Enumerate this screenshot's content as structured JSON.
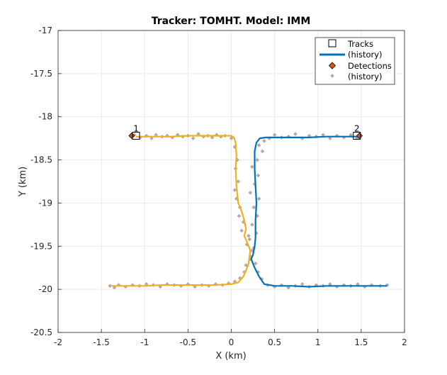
{
  "chart_data": {
    "type": "line",
    "title": "Tracker: TOMHT. Model: IMM",
    "xlabel": "X (km)",
    "ylabel": "Y (km)",
    "xlim": [
      -2,
      2
    ],
    "ylim": [
      -20.5,
      -17
    ],
    "xticks": [
      -2,
      -1.5,
      -1,
      -0.5,
      0,
      0.5,
      1,
      1.5,
      2
    ],
    "yticks": [
      -20.5,
      -20,
      -19.5,
      -19,
      -18.5,
      -18,
      -17.5,
      -17
    ],
    "grid": true,
    "legend_position": "top-right",
    "legend": [
      {
        "label": "Tracks",
        "marker": "square"
      },
      {
        "label": "(history)",
        "marker": "line"
      },
      {
        "label": "Detections",
        "marker": "diamond"
      },
      {
        "label": "(history)",
        "marker": "point"
      }
    ],
    "colors": {
      "track1": "#EDB120",
      "track2": "#0072BD",
      "detection_fill": "#D95319",
      "history_point_fill": "#C8A0A8",
      "history_point_edge": "#A0A0A0",
      "grid": "#E6E6E6",
      "axis": "#262626"
    },
    "tracks": [
      {
        "id": "1",
        "label_position": [
          -1.1,
          -18.17
        ],
        "current_position": [
          -1.1,
          -18.22
        ],
        "detection_position": [
          -1.15,
          -18.22
        ],
        "history": [
          [
            -1.1,
            -18.23
          ],
          [
            -0.9,
            -18.23
          ],
          [
            -0.7,
            -18.23
          ],
          [
            -0.5,
            -18.22
          ],
          [
            -0.3,
            -18.22
          ],
          [
            -0.1,
            -18.22
          ],
          [
            0.0,
            -18.22
          ],
          [
            0.03,
            -18.24
          ],
          [
            0.05,
            -18.3
          ],
          [
            0.06,
            -18.45
          ],
          [
            0.05,
            -18.6
          ],
          [
            0.06,
            -18.8
          ],
          [
            0.08,
            -19.0
          ],
          [
            0.12,
            -19.1
          ],
          [
            0.15,
            -19.2
          ],
          [
            0.17,
            -19.3
          ],
          [
            0.15,
            -19.38
          ],
          [
            0.18,
            -19.45
          ],
          [
            0.2,
            -19.5
          ],
          [
            0.22,
            -19.55
          ],
          [
            0.21,
            -19.62
          ],
          [
            0.2,
            -19.7
          ],
          [
            0.17,
            -19.78
          ],
          [
            0.14,
            -19.85
          ],
          [
            0.08,
            -19.92
          ],
          [
            0.0,
            -19.94
          ],
          [
            -0.2,
            -19.95
          ],
          [
            -0.4,
            -19.95
          ],
          [
            -0.6,
            -19.95
          ],
          [
            -0.8,
            -19.95
          ],
          [
            -1.0,
            -19.96
          ],
          [
            -1.2,
            -19.96
          ],
          [
            -1.38,
            -19.96
          ]
        ]
      },
      {
        "id": "2",
        "label_position": [
          1.45,
          -18.17
        ],
        "current_position": [
          1.45,
          -18.22
        ],
        "detection_position": [
          1.48,
          -18.22
        ],
        "history": [
          [
            1.48,
            -18.23
          ],
          [
            1.3,
            -18.23
          ],
          [
            1.1,
            -18.23
          ],
          [
            0.9,
            -18.24
          ],
          [
            0.7,
            -18.24
          ],
          [
            0.5,
            -18.24
          ],
          [
            0.4,
            -18.24
          ],
          [
            0.33,
            -18.25
          ],
          [
            0.29,
            -18.3
          ],
          [
            0.27,
            -18.4
          ],
          [
            0.27,
            -18.6
          ],
          [
            0.28,
            -18.8
          ],
          [
            0.29,
            -19.0
          ],
          [
            0.28,
            -19.2
          ],
          [
            0.28,
            -19.4
          ],
          [
            0.27,
            -19.5
          ],
          [
            0.25,
            -19.6
          ],
          [
            0.23,
            -19.65
          ],
          [
            0.27,
            -19.75
          ],
          [
            0.32,
            -19.85
          ],
          [
            0.38,
            -19.94
          ],
          [
            0.5,
            -19.96
          ],
          [
            0.7,
            -19.96
          ],
          [
            0.9,
            -19.97
          ],
          [
            1.1,
            -19.96
          ],
          [
            1.3,
            -19.96
          ],
          [
            1.5,
            -19.96
          ],
          [
            1.65,
            -19.96
          ],
          [
            1.8,
            -19.96
          ]
        ]
      }
    ],
    "detection_history": [
      [
        -1.12,
        -18.21
      ],
      [
        -1.05,
        -18.24
      ],
      [
        -0.98,
        -18.22
      ],
      [
        -0.92,
        -18.25
      ],
      [
        -0.87,
        -18.21
      ],
      [
        -0.8,
        -18.23
      ],
      [
        -0.74,
        -18.22
      ],
      [
        -0.68,
        -18.24
      ],
      [
        -0.62,
        -18.21
      ],
      [
        -0.56,
        -18.23
      ],
      [
        -0.5,
        -18.22
      ],
      [
        -0.44,
        -18.25
      ],
      [
        -0.38,
        -18.2
      ],
      [
        -0.32,
        -18.23
      ],
      [
        -0.27,
        -18.22
      ],
      [
        -0.22,
        -18.24
      ],
      [
        -0.17,
        -18.21
      ],
      [
        -0.12,
        -18.23
      ],
      [
        -0.07,
        -18.22
      ],
      [
        0.0,
        -18.25
      ],
      [
        0.04,
        -18.35
      ],
      [
        0.07,
        -18.5
      ],
      [
        0.05,
        -18.6
      ],
      [
        0.08,
        -18.75
      ],
      [
        0.04,
        -18.85
      ],
      [
        0.06,
        -18.95
      ],
      [
        0.1,
        -19.05
      ],
      [
        0.09,
        -19.15
      ],
      [
        0.14,
        -19.22
      ],
      [
        0.12,
        -19.32
      ],
      [
        0.2,
        -19.38
      ],
      [
        0.18,
        -19.48
      ],
      [
        0.24,
        -19.55
      ],
      [
        0.22,
        -19.65
      ],
      [
        0.17,
        -19.72
      ],
      [
        0.15,
        -19.8
      ],
      [
        0.1,
        -19.87
      ],
      [
        0.04,
        -19.91
      ],
      [
        -0.03,
        -19.93
      ],
      [
        -0.1,
        -19.95
      ],
      [
        -0.18,
        -19.94
      ],
      [
        -0.26,
        -19.96
      ],
      [
        -0.34,
        -19.95
      ],
      [
        -0.42,
        -19.97
      ],
      [
        -0.5,
        -19.94
      ],
      [
        -0.58,
        -19.96
      ],
      [
        -0.66,
        -19.95
      ],
      [
        -0.74,
        -19.94
      ],
      [
        -0.82,
        -19.97
      ],
      [
        -0.9,
        -19.95
      ],
      [
        -0.98,
        -19.94
      ],
      [
        -1.06,
        -19.96
      ],
      [
        -1.14,
        -19.95
      ],
      [
        -1.22,
        -19.97
      ],
      [
        -1.3,
        -19.95
      ],
      [
        -1.4,
        -19.96
      ],
      [
        -1.35,
        -19.98
      ],
      [
        1.45,
        -18.25
      ],
      [
        1.38,
        -18.21
      ],
      [
        1.3,
        -18.24
      ],
      [
        1.22,
        -18.22
      ],
      [
        1.14,
        -18.25
      ],
      [
        1.06,
        -18.21
      ],
      [
        0.98,
        -18.23
      ],
      [
        0.9,
        -18.22
      ],
      [
        0.82,
        -18.25
      ],
      [
        0.74,
        -18.2
      ],
      [
        0.66,
        -18.23
      ],
      [
        0.58,
        -18.24
      ],
      [
        0.5,
        -18.21
      ],
      [
        0.44,
        -18.25
      ],
      [
        0.38,
        -18.28
      ],
      [
        0.32,
        -18.33
      ],
      [
        0.36,
        -18.4
      ],
      [
        0.3,
        -18.5
      ],
      [
        0.24,
        -18.58
      ],
      [
        0.31,
        -18.68
      ],
      [
        0.27,
        -18.78
      ],
      [
        0.22,
        -18.88
      ],
      [
        0.32,
        -18.95
      ],
      [
        0.26,
        -19.05
      ],
      [
        0.3,
        -19.15
      ],
      [
        0.24,
        -19.25
      ],
      [
        0.29,
        -19.35
      ],
      [
        0.21,
        -19.42
      ],
      [
        0.26,
        -19.52
      ],
      [
        0.23,
        -19.62
      ],
      [
        0.28,
        -19.7
      ],
      [
        0.31,
        -19.8
      ],
      [
        0.35,
        -19.88
      ],
      [
        0.42,
        -19.95
      ],
      [
        0.5,
        -19.97
      ],
      [
        0.58,
        -19.95
      ],
      [
        0.66,
        -19.98
      ],
      [
        0.74,
        -19.96
      ],
      [
        0.82,
        -19.94
      ],
      [
        0.9,
        -19.97
      ],
      [
        0.98,
        -19.95
      ],
      [
        1.06,
        -19.96
      ],
      [
        1.14,
        -19.94
      ],
      [
        1.22,
        -19.97
      ],
      [
        1.3,
        -19.95
      ],
      [
        1.38,
        -19.96
      ],
      [
        1.46,
        -19.94
      ],
      [
        1.54,
        -19.97
      ],
      [
        1.62,
        -19.95
      ],
      [
        1.72,
        -19.96
      ],
      [
        1.8,
        -19.95
      ]
    ]
  }
}
